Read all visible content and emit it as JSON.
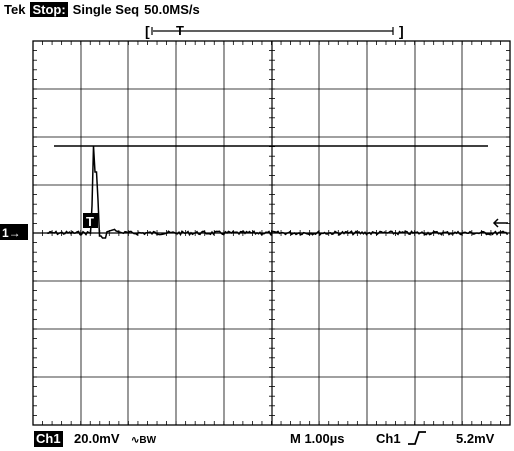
{
  "header": {
    "brand": "Tek",
    "state": "Stop:",
    "mode": "Single Seq",
    "sample_rate": "50.0MS/s"
  },
  "marker": {
    "trigger_letter": "T",
    "ch1_marker": "1→"
  },
  "footer": {
    "channel": "Ch1",
    "volts_div": "20.0mV",
    "bw_symbol": "∿BW",
    "timebase": "M 1.00µs",
    "trigger_source": "Ch1",
    "trigger_slope_icon": "rising-edge-icon",
    "trigger_level": "5.2mV"
  }
}
